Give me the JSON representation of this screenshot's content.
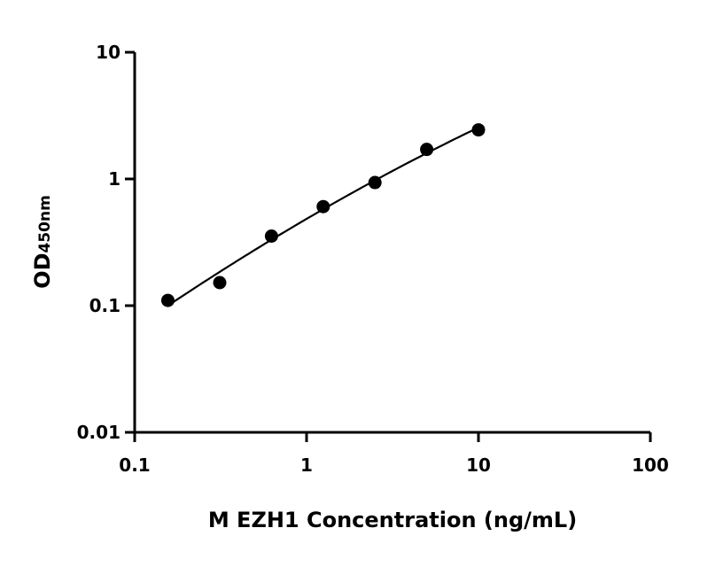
{
  "chart_data": {
    "type": "scatter",
    "title": "",
    "xlabel": "M EZH1 Concentration (ng/mL)",
    "ylabel": "OD",
    "ylabel_subscript": "450nm",
    "x_scale": "log",
    "y_scale": "log",
    "xlim": [
      0.1,
      100
    ],
    "ylim": [
      0.01,
      10
    ],
    "x_ticks": [
      "0.1",
      "1",
      "10",
      "100"
    ],
    "y_ticks": [
      "0.01",
      "0.1",
      "1",
      "10"
    ],
    "grid": false,
    "fit_curve": true,
    "marker_color": "#000000",
    "series": [
      {
        "x": [
          0.156,
          0.3125,
          0.625,
          1.25,
          2.5,
          5,
          10
        ],
        "y": [
          0.11,
          0.152,
          0.354,
          0.605,
          0.937,
          1.71,
          2.44
        ]
      }
    ]
  }
}
